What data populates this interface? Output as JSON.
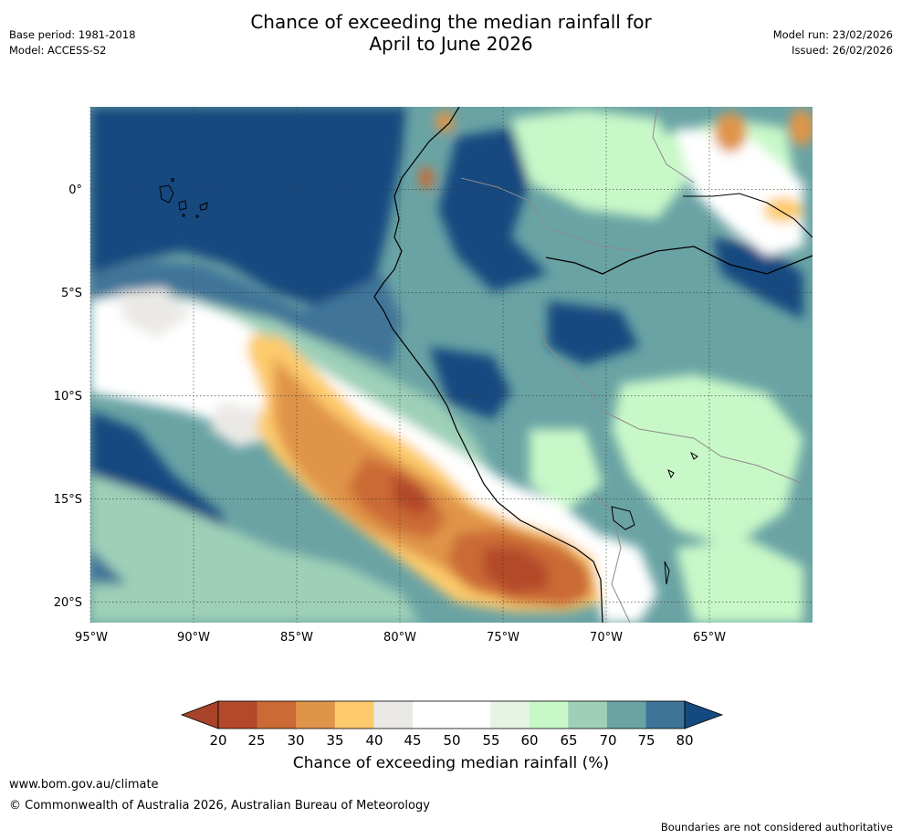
{
  "header": {
    "title_line1": "Chance of exceeding the median rainfall for",
    "title_line2": "April to June 2026",
    "base_period": "Base period: 1981-2018",
    "model": "Model: ACCESS-S2",
    "model_run": "Model run: 23/02/2026",
    "issued": "Issued: 26/02/2026"
  },
  "map": {
    "lon_labels": [
      "95°W",
      "90°W",
      "85°W",
      "80°W",
      "75°W",
      "70°W",
      "65°W"
    ],
    "lat_labels": [
      "0°",
      "5°S",
      "10°S",
      "15°S",
      "20°S"
    ],
    "extent": {
      "lon_west": -95,
      "lon_east": -60,
      "lat_north": 4,
      "lat_south": -21
    }
  },
  "colorbar": {
    "ticks": [
      "20",
      "25",
      "30",
      "35",
      "40",
      "45",
      "50",
      "55",
      "60",
      "65",
      "70",
      "75",
      "80"
    ],
    "colors": [
      "#a8432a",
      "#b4482a",
      "#cb6a35",
      "#e0944a",
      "#fdca6c",
      "#ebe9e5",
      "#ffffff",
      "#ffffff",
      "#e6f4e6",
      "#c8f8c8",
      "#9ed0b8",
      "#6aa3a4",
      "#3f7499",
      "#154a80"
    ],
    "label": "Chance of exceeding median rainfall (%)"
  },
  "footer": {
    "website": "www.bom.gov.au/climate",
    "copyright": "© Commonwealth of Australia 2026, Australian Bureau of Meteorology",
    "disclaimer": "Boundaries are not considered authoritative"
  }
}
